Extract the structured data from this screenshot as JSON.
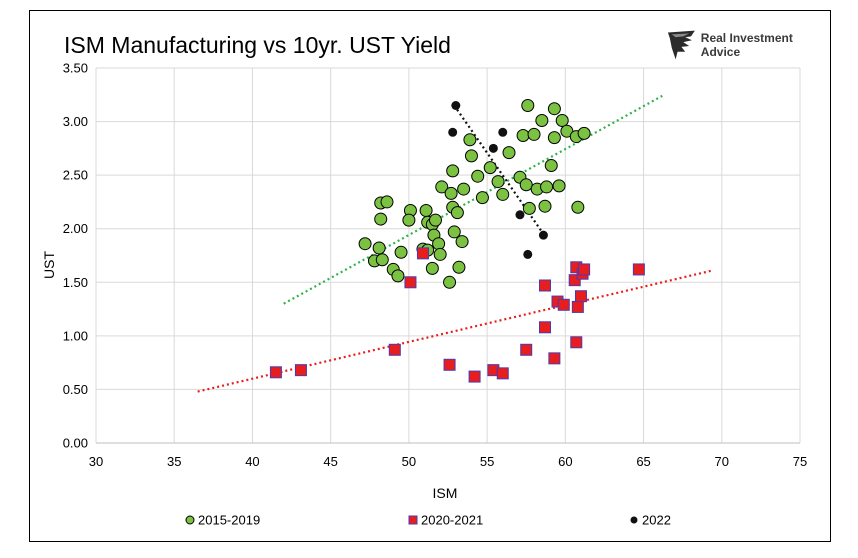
{
  "brand": {
    "name": "Real Investment Advice",
    "logo": "eagle-head-icon"
  },
  "chart_data": {
    "type": "scatter",
    "title": "ISM Manufacturing vs 10yr. UST Yield",
    "xlabel": "ISM",
    "ylabel": "UST",
    "xlim": [
      30,
      75
    ],
    "ylim": [
      0,
      3.5
    ],
    "xticks": [
      "30",
      "35",
      "40",
      "45",
      "50",
      "55",
      "60",
      "65",
      "70",
      "75"
    ],
    "yticks": [
      "0.00",
      "0.50",
      "1.00",
      "1.50",
      "2.00",
      "2.50",
      "3.00",
      "3.50"
    ],
    "grid": true,
    "legend": "bottom",
    "series": [
      {
        "name": "2015-2019",
        "marker": "circle",
        "color": "#7cc242",
        "trendline": {
          "color": "#2db34a",
          "x": [
            42,
            66.2
          ],
          "y": [
            1.3,
            3.24
          ]
        },
        "points": [
          [
            47.2,
            1.86
          ],
          [
            47.8,
            1.7
          ],
          [
            48.1,
            1.82
          ],
          [
            48.3,
            1.71
          ],
          [
            48.2,
            2.09
          ],
          [
            48.2,
            2.24
          ],
          [
            48.6,
            2.25
          ],
          [
            49.0,
            1.62
          ],
          [
            49.3,
            1.56
          ],
          [
            49.5,
            1.78
          ],
          [
            50.1,
            2.17
          ],
          [
            50.0,
            2.08
          ],
          [
            50.9,
            1.81
          ],
          [
            51.2,
            1.8
          ],
          [
            51.1,
            2.17
          ],
          [
            51.2,
            2.06
          ],
          [
            51.5,
            2.04
          ],
          [
            51.6,
            1.94
          ],
          [
            51.5,
            1.63
          ],
          [
            51.7,
            2.08
          ],
          [
            51.9,
            1.86
          ],
          [
            52.0,
            1.76
          ],
          [
            52.1,
            2.39
          ],
          [
            52.6,
            1.5
          ],
          [
            52.7,
            2.33
          ],
          [
            52.8,
            2.2
          ],
          [
            52.8,
            2.54
          ],
          [
            52.9,
            1.97
          ],
          [
            53.1,
            2.15
          ],
          [
            53.2,
            1.64
          ],
          [
            53.4,
            1.88
          ],
          [
            53.5,
            2.37
          ],
          [
            53.9,
            2.83
          ],
          [
            54.0,
            2.68
          ],
          [
            54.4,
            2.49
          ],
          [
            54.7,
            2.29
          ],
          [
            55.2,
            2.57
          ],
          [
            55.7,
            2.44
          ],
          [
            56.0,
            2.32
          ],
          [
            56.4,
            2.71
          ],
          [
            57.1,
            2.48
          ],
          [
            57.3,
            2.87
          ],
          [
            57.5,
            2.41
          ],
          [
            57.6,
            3.15
          ],
          [
            57.7,
            2.19
          ],
          [
            58.0,
            2.88
          ],
          [
            58.2,
            2.37
          ],
          [
            58.5,
            3.01
          ],
          [
            58.7,
            2.21
          ],
          [
            58.8,
            2.39
          ],
          [
            59.1,
            2.59
          ],
          [
            59.3,
            3.12
          ],
          [
            59.3,
            2.85
          ],
          [
            59.6,
            2.4
          ],
          [
            59.8,
            3.01
          ],
          [
            60.1,
            2.91
          ],
          [
            60.7,
            2.86
          ],
          [
            60.8,
            2.2
          ],
          [
            61.2,
            2.89
          ]
        ]
      },
      {
        "name": "2020-2021",
        "marker": "square",
        "color": "#e81e1e",
        "trendline": {
          "color": "#e81e1e",
          "x": [
            36.5,
            69.4
          ],
          "y": [
            0.48,
            1.61
          ]
        },
        "points": [
          [
            41.5,
            0.66
          ],
          [
            43.1,
            0.68
          ],
          [
            49.1,
            0.87
          ],
          [
            50.1,
            1.5
          ],
          [
            50.9,
            1.77
          ],
          [
            52.6,
            0.73
          ],
          [
            54.2,
            0.62
          ],
          [
            55.4,
            0.68
          ],
          [
            56.0,
            0.65
          ],
          [
            57.5,
            0.87
          ],
          [
            58.7,
            1.08
          ],
          [
            58.7,
            1.47
          ],
          [
            59.3,
            0.79
          ],
          [
            59.5,
            1.32
          ],
          [
            59.9,
            1.29
          ],
          [
            60.6,
            1.52
          ],
          [
            60.7,
            0.94
          ],
          [
            60.7,
            1.64
          ],
          [
            60.8,
            1.27
          ],
          [
            61.0,
            1.37
          ],
          [
            61.1,
            1.58
          ],
          [
            61.2,
            1.62
          ],
          [
            64.7,
            1.62
          ]
        ]
      },
      {
        "name": "2022",
        "marker": "circle",
        "color": "#111111",
        "trendline": {
          "color": "#111111",
          "x": [
            52.9,
            58.7
          ],
          "y": [
            3.15,
            1.93
          ]
        },
        "points": [
          [
            52.8,
            2.9
          ],
          [
            53.0,
            3.15
          ],
          [
            55.4,
            2.75
          ],
          [
            56.0,
            2.9
          ],
          [
            57.1,
            2.13
          ],
          [
            57.6,
            1.76
          ],
          [
            58.6,
            1.94
          ]
        ]
      }
    ]
  }
}
